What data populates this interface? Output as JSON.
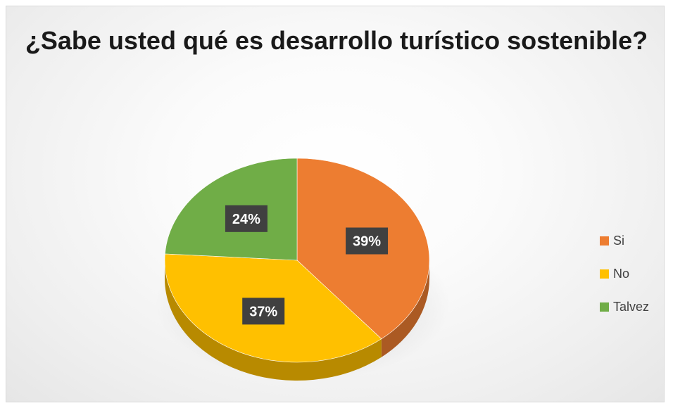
{
  "chart_data": {
    "type": "pie",
    "title": "¿Sabe usted qué es desarrollo turístico sostenible?",
    "categories": [
      "Si",
      "No",
      "Talvez"
    ],
    "values": [
      39,
      37,
      24
    ],
    "data_labels": [
      "39%",
      "37%",
      "24%"
    ],
    "colors": [
      "#ED7D31",
      "#FFC000",
      "#70AD47"
    ],
    "legend_position": "right"
  }
}
